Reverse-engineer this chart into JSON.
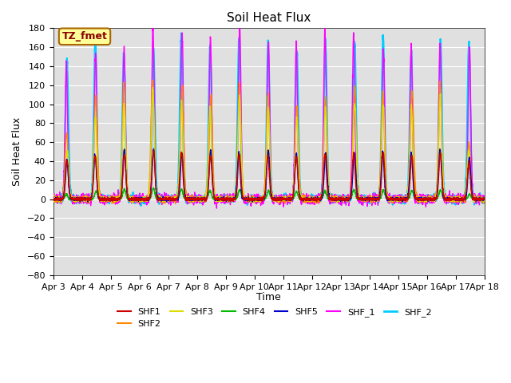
{
  "title": "Soil Heat Flux",
  "ylabel": "Soil Heat Flux",
  "xlabel": "Time",
  "annotation": "TZ_fmet",
  "ylim": [
    -80,
    180
  ],
  "yticks": [
    -80,
    -60,
    -40,
    -20,
    0,
    20,
    40,
    60,
    80,
    100,
    120,
    140,
    160,
    180
  ],
  "xtick_labels": [
    "Apr 3",
    "Apr 4",
    "Apr 5",
    "Apr 6",
    "Apr 7",
    "Apr 8",
    "Apr 9",
    "Apr 10",
    "Apr 11",
    "Apr 12",
    "Apr 13",
    "Apr 14",
    "Apr 15",
    "Apr 16",
    "Apr 17",
    "Apr 18"
  ],
  "series": {
    "SHF1": {
      "color": "#cc0000",
      "lw": 1.0
    },
    "SHF2": {
      "color": "#ff8800",
      "lw": 1.0
    },
    "SHF3": {
      "color": "#dddd00",
      "lw": 1.0
    },
    "SHF4": {
      "color": "#00bb00",
      "lw": 1.0
    },
    "SHF5": {
      "color": "#0000cc",
      "lw": 1.0
    },
    "SHF_1": {
      "color": "#ff00ff",
      "lw": 1.0
    },
    "SHF_2": {
      "color": "#00ccff",
      "lw": 1.5
    }
  },
  "background_color": "#e0e0e0",
  "annotation_bg": "#ffff99",
  "annotation_border": "#aa6600"
}
